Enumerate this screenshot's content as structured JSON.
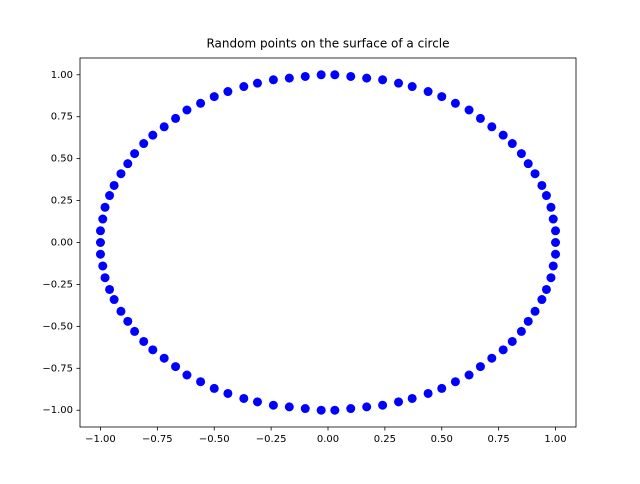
{
  "chart_data": {
    "type": "scatter",
    "title": "Random points on the surface of a circle",
    "series": [
      {
        "color": "#0000ff",
        "x": [
          1.0,
          1.0,
          0.99,
          0.98,
          0.96,
          0.94,
          0.91,
          0.88,
          0.85,
          0.81,
          0.77,
          0.72,
          0.67,
          0.62,
          0.56,
          0.5,
          0.44,
          0.37,
          0.31,
          0.24,
          0.17,
          0.1,
          0.03,
          -0.03,
          -0.1,
          -0.17,
          -0.24,
          -0.31,
          -0.37,
          -0.44,
          -0.5,
          -0.56,
          -0.62,
          -0.67,
          -0.72,
          -0.77,
          -0.81,
          -0.85,
          -0.88,
          -0.91,
          -0.94,
          -0.96,
          -0.98,
          -0.99,
          -1.0,
          -1.0,
          -1.0,
          -0.99,
          -0.98,
          -0.96,
          -0.94,
          -0.91,
          -0.88,
          -0.85,
          -0.81,
          -0.77,
          -0.72,
          -0.67,
          -0.62,
          -0.56,
          -0.5,
          -0.44,
          -0.37,
          -0.31,
          -0.24,
          -0.17,
          -0.1,
          -0.03,
          0.03,
          0.1,
          0.17,
          0.24,
          0.31,
          0.37,
          0.44,
          0.5,
          0.56,
          0.62,
          0.67,
          0.72,
          0.77,
          0.81,
          0.85,
          0.88,
          0.91,
          0.94,
          0.96,
          0.98,
          0.99,
          1.0
        ],
        "values": [
          0.0,
          0.07,
          0.14,
          0.21,
          0.28,
          0.34,
          0.41,
          0.47,
          0.53,
          0.59,
          0.64,
          0.69,
          0.74,
          0.79,
          0.83,
          0.87,
          0.9,
          0.93,
          0.95,
          0.97,
          0.98,
          0.99,
          1.0,
          1.0,
          0.99,
          0.98,
          0.97,
          0.95,
          0.93,
          0.9,
          0.87,
          0.83,
          0.79,
          0.74,
          0.69,
          0.64,
          0.59,
          0.53,
          0.47,
          0.41,
          0.34,
          0.28,
          0.21,
          0.14,
          0.07,
          0.0,
          -0.07,
          -0.14,
          -0.21,
          -0.28,
          -0.34,
          -0.41,
          -0.47,
          -0.53,
          -0.59,
          -0.64,
          -0.69,
          -0.74,
          -0.79,
          -0.83,
          -0.87,
          -0.9,
          -0.93,
          -0.95,
          -0.97,
          -0.98,
          -0.99,
          -1.0,
          -1.0,
          -0.99,
          -0.98,
          -0.97,
          -0.95,
          -0.93,
          -0.9,
          -0.87,
          -0.83,
          -0.79,
          -0.74,
          -0.69,
          -0.64,
          -0.59,
          -0.53,
          -0.47,
          -0.41,
          -0.34,
          -0.28,
          -0.21,
          -0.14,
          -0.07
        ]
      }
    ],
    "xlim": [
      -1.09,
      1.09
    ],
    "ylim": [
      -1.1,
      1.1
    ],
    "xticks": [
      {
        "value": -1,
        "label": "−1.00"
      },
      {
        "value": -0.75,
        "label": "−0.75"
      },
      {
        "value": -0.5,
        "label": "−0.50"
      },
      {
        "value": -0.25,
        "label": "−0.25"
      },
      {
        "value": 0,
        "label": "0.00"
      },
      {
        "value": 0.25,
        "label": "0.25"
      },
      {
        "value": 0.5,
        "label": "0.50"
      },
      {
        "value": 0.75,
        "label": "0.75"
      },
      {
        "value": 1,
        "label": "1.00"
      }
    ],
    "yticks": [
      {
        "value": -1,
        "label": "−1.00"
      },
      {
        "value": -0.75,
        "label": "−0.75"
      },
      {
        "value": -0.5,
        "label": "−0.50"
      },
      {
        "value": -0.25,
        "label": "−0.25"
      },
      {
        "value": 0,
        "label": "0.00"
      },
      {
        "value": 0.25,
        "label": "0.25"
      },
      {
        "value": 0.5,
        "label": "0.50"
      },
      {
        "value": 0.75,
        "label": "0.75"
      },
      {
        "value": 1,
        "label": "1.00"
      }
    ]
  }
}
